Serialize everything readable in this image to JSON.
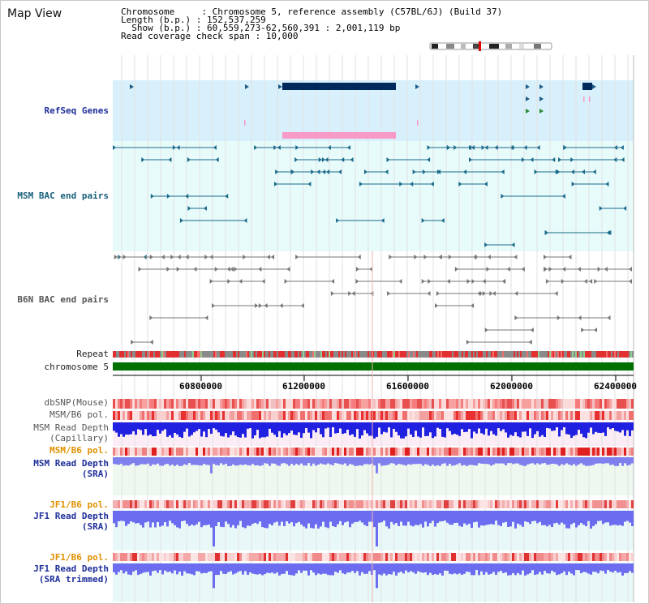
{
  "page": {
    "title": "Map View",
    "info": {
      "chromosome": "Chromosome     : Chromosome 5, reference assembly (C57BL/6J) (Build 37)",
      "length": "Length (b.p.) : 152,537,259",
      "show": "  Show (b.p.) : 60,559,273-62,560,391 : 2,001,119 bp",
      "span": "Read coverage check span : 10,000"
    }
  },
  "tracks": {
    "refseq": "RefSeq Genes",
    "msm_bac": "MSM BAC end pairs",
    "b6n_bac": "B6N BAC end pairs",
    "repeat": "Repeat",
    "chromosome": "chromosome 5",
    "dbsnp": "dbSNP(Mouse)",
    "msm_pol": "MSM/B6 pol.",
    "msm_depth_cap_1": "MSM Read Depth",
    "msm_depth_cap_2": "(Capillary)",
    "msm_pol_2": "MSM/B6 pol.",
    "msm_depth_sra_1": "MSM Read Depth",
    "msm_depth_sra_2": "(SRA)",
    "jf1_pol": "JF1/B6 pol.",
    "jf1_depth_1": "JF1 Read Depth",
    "jf1_depth_2": "(SRA)",
    "jf1_pol_2": "JF1/B6 pol.",
    "jf1_trim_1": "JF1 Read Depth",
    "jf1_trim_2": "(SRA trimmed)"
  },
  "axis": {
    "ticks": [
      "60800000",
      "61200000",
      "61600000",
      "62000000",
      "62400000"
    ]
  },
  "colors": {
    "refseq_bg": "#d8f0fb",
    "bac_bg": "#e8fbfb",
    "depth_bg": "#eef8ee",
    "chromosome": "#007000",
    "gene_dark": "#002a5c",
    "gene_pink": "#f79ac8"
  }
}
